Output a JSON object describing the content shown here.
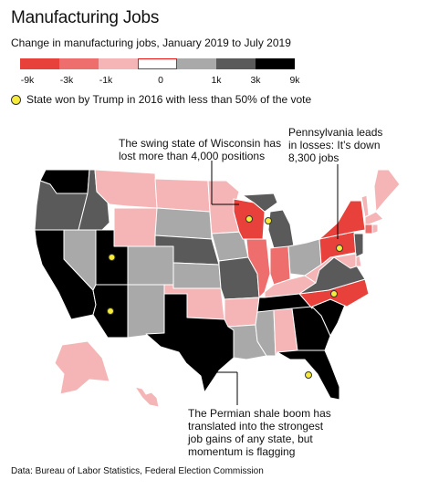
{
  "title": "Manufacturing Jobs",
  "subtitle": "Change in manufacturing jobs, January 2019 to July 2019",
  "legend": {
    "bins": [
      {
        "color": "#e8403a"
      },
      {
        "color": "#ee6e6e"
      },
      {
        "color": "#f5b5b6"
      },
      {
        "color": "#ffffff"
      },
      {
        "color": "#a9a9a9"
      },
      {
        "color": "#5a5a5a"
      },
      {
        "color": "#000000"
      }
    ],
    "ticks": [
      "-9k",
      "-3k",
      "-1k",
      "0",
      "1k",
      "3k",
      "9k"
    ],
    "trump_note": "State won by Trump in 2016 with less than 50% of the vote",
    "trump_marker_color": "#f6ea3a"
  },
  "annotations": {
    "wisconsin": [
      "The swing state of Wisconsin has",
      "lost more than 4,000 positions"
    ],
    "pennsylvania": [
      "Pennsylvania leads",
      "in losses: It’s down",
      "8,300 jobs"
    ],
    "texas": [
      "The Permian shale boom has",
      "translated into the strongest",
      "job gains of any state, but",
      "momentum is flagging"
    ]
  },
  "source": "Data: Bureau of Labor Statistics, Federal Election Commission",
  "states": [
    {
      "id": "WA",
      "bin": 6
    },
    {
      "id": "OR",
      "bin": 5
    },
    {
      "id": "CA",
      "bin": 6
    },
    {
      "id": "NV",
      "bin": 4
    },
    {
      "id": "ID",
      "bin": 5
    },
    {
      "id": "MT",
      "bin": 2
    },
    {
      "id": "WY",
      "bin": 2
    },
    {
      "id": "UT",
      "bin": 6
    },
    {
      "id": "AZ",
      "bin": 6
    },
    {
      "id": "CO",
      "bin": 4
    },
    {
      "id": "NM",
      "bin": 4
    },
    {
      "id": "ND",
      "bin": 2
    },
    {
      "id": "SD",
      "bin": 4
    },
    {
      "id": "NE",
      "bin": 5
    },
    {
      "id": "KS",
      "bin": 4
    },
    {
      "id": "OK",
      "bin": 2
    },
    {
      "id": "TX",
      "bin": 6
    },
    {
      "id": "MN",
      "bin": 2
    },
    {
      "id": "IA",
      "bin": 4
    },
    {
      "id": "MO",
      "bin": 5
    },
    {
      "id": "AR",
      "bin": 2
    },
    {
      "id": "LA",
      "bin": 4
    },
    {
      "id": "WI",
      "bin": 0
    },
    {
      "id": "MI",
      "bin": 5
    },
    {
      "id": "IL",
      "bin": 1
    },
    {
      "id": "IN",
      "bin": 1
    },
    {
      "id": "OH",
      "bin": 4
    },
    {
      "id": "KY",
      "bin": 2
    },
    {
      "id": "TN",
      "bin": 6
    },
    {
      "id": "MS",
      "bin": 4
    },
    {
      "id": "AL",
      "bin": 2
    },
    {
      "id": "GA",
      "bin": 6
    },
    {
      "id": "FL",
      "bin": 6
    },
    {
      "id": "SC",
      "bin": 6
    },
    {
      "id": "NC",
      "bin": 0
    },
    {
      "id": "VA",
      "bin": 5
    },
    {
      "id": "WV",
      "bin": 2
    },
    {
      "id": "PA",
      "bin": 0
    },
    {
      "id": "NY",
      "bin": 0
    },
    {
      "id": "VT",
      "bin": 2
    },
    {
      "id": "NH",
      "bin": 3
    },
    {
      "id": "ME",
      "bin": 2
    },
    {
      "id": "MA",
      "bin": 2
    },
    {
      "id": "CT",
      "bin": 1
    },
    {
      "id": "RI",
      "bin": 2
    },
    {
      "id": "NJ",
      "bin": 5
    },
    {
      "id": "DE",
      "bin": 2
    },
    {
      "id": "MD",
      "bin": 2
    },
    {
      "id": "AK",
      "bin": 2
    },
    {
      "id": "HI",
      "bin": 2
    }
  ],
  "trump_states": [
    "WI",
    "MI",
    "PA",
    "UT",
    "AZ",
    "NC",
    "FL"
  ]
}
